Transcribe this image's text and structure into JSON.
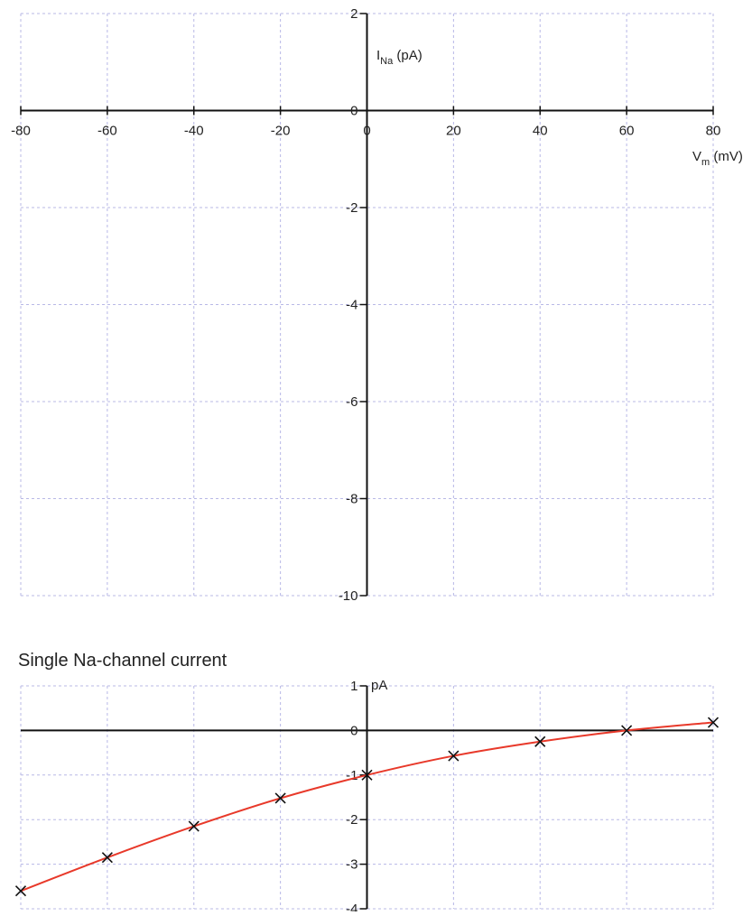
{
  "chart_data": [
    {
      "type": "line",
      "title": "",
      "empty_plot": true,
      "xlabel": {
        "main": "V",
        "sub": "m",
        "unit": " (mV)"
      },
      "ylabel": {
        "main": "I",
        "sub": "Na",
        "unit": " (pA)"
      },
      "xlim": [
        -80,
        80
      ],
      "ylim": [
        -10,
        2
      ],
      "x_ticks": [
        -80,
        -60,
        -40,
        -20,
        0,
        20,
        40,
        60,
        80
      ],
      "y_ticks": [
        2,
        0,
        -2,
        -4,
        -6,
        -8,
        -10
      ],
      "x_tick_labels": [
        "-80",
        "-60",
        "-40",
        "-20",
        "0",
        "20",
        "40",
        "60",
        "80"
      ],
      "y_tick_labels": [
        "2",
        "0",
        "-2",
        "-4",
        "-6",
        "-8",
        "-10"
      ],
      "grid": true,
      "series": []
    },
    {
      "type": "line",
      "title": "Single Na-channel current",
      "ylabel": "pA",
      "xlim": [
        -80,
        80
      ],
      "ylim": [
        -4,
        1
      ],
      "y_ticks": [
        1,
        0,
        -1,
        -2,
        -3,
        -4
      ],
      "y_tick_labels": [
        "1",
        "0",
        "-1",
        "-2",
        "-3",
        "-4"
      ],
      "grid": true,
      "series": [
        {
          "marker": "x",
          "x": [
            -80,
            -60,
            -40,
            -20,
            0,
            20,
            40,
            60,
            80
          ],
          "y": [
            -3.6,
            -2.85,
            -2.15,
            -1.52,
            -1.0,
            -0.57,
            -0.25,
            0.0,
            0.18
          ]
        },
        {
          "style": "curve",
          "color": "#e8392a",
          "x": [
            -80,
            -60,
            -40,
            -20,
            0,
            20,
            40,
            60,
            80
          ],
          "y": [
            -3.6,
            -2.85,
            -2.15,
            -1.52,
            -1.0,
            -0.57,
            -0.25,
            0.0,
            0.18
          ]
        }
      ]
    }
  ],
  "colors": {
    "grid": "#b8b8e6",
    "axis": "#111111",
    "curve": "#e8392a",
    "marker": "#111111"
  }
}
